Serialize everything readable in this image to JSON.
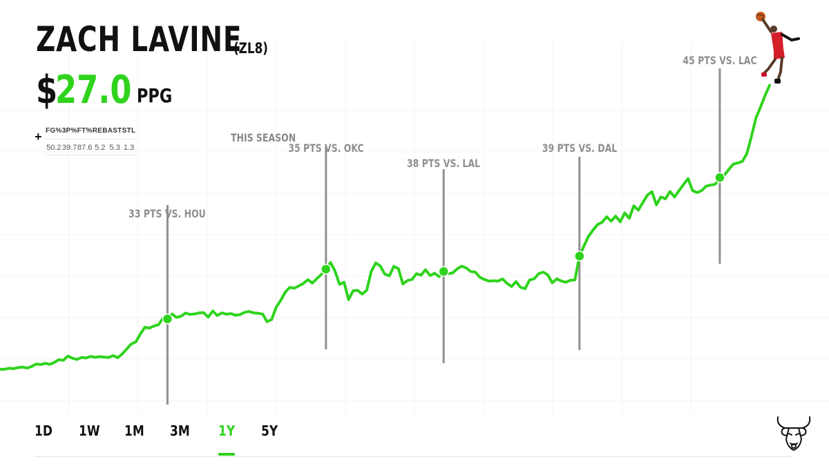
{
  "header": {
    "player_name": "ZACH LAVINE",
    "ticker": "(ZL8)",
    "currency_symbol": "$",
    "price": "27.0",
    "price_unit": "PPG"
  },
  "stats": {
    "expand_symbol": "+",
    "columns": [
      "FG%",
      "3P%",
      "FT%",
      "REB",
      "AST",
      "STL"
    ],
    "values": [
      "50.2",
      "39.7",
      "87.6",
      "5.2",
      "5.3",
      "1.3"
    ],
    "period_label": "THIS SEASON"
  },
  "annotations": [
    {
      "label": "33 PTS VS. HOU"
    },
    {
      "label": "35 PTS VS. OKC"
    },
    {
      "label": "38 PTS VS. LAL"
    },
    {
      "label": "39 PTS VS. DAL"
    },
    {
      "label": "45 PTS VS. LAC"
    }
  ],
  "time_ranges": {
    "items": [
      "1D",
      "1W",
      "1M",
      "3M",
      "1Y",
      "5Y"
    ],
    "active": "1Y"
  },
  "colors": {
    "accent": "#2fd31d",
    "annotation_text": "#8f8f8f",
    "text": "#111111"
  },
  "icons": {
    "team_logo": "bulls-logo-icon",
    "player_photo": "dunking-player-image"
  },
  "chart_data": {
    "type": "line",
    "series": [
      {
        "values": [
          10,
          10,
          10.5,
          10.3,
          10.8,
          11,
          10.6,
          11.3,
          12.5,
          12.2,
          12.8,
          12.3,
          13.2,
          14.5,
          14.2,
          16.2,
          15.2,
          14.6,
          15.5,
          15.3,
          16,
          15.6,
          15.9,
          15.7,
          15.5,
          16.4,
          15.4,
          17.2,
          19.5,
          21.8,
          22.8,
          26.4,
          29.6,
          29.2,
          30.2,
          30.8,
          33.8,
          33.5,
          35.8,
          34.2,
          34.8,
          36.2,
          35.6,
          35.8,
          36.3,
          36.4,
          34.3,
          37.2,
          35.1,
          36.3,
          35.7,
          36,
          35.2,
          35.5,
          36.5,
          37,
          36.3,
          36.1,
          35.8,
          32.2,
          33.2,
          38.9,
          42.1,
          45.9,
          48.2,
          47.8,
          48.9,
          50,
          51.8,
          50.2,
          52.3,
          54.3,
          56.7,
          59.8,
          55.8,
          49.6,
          50.6,
          42.5,
          46.6,
          46.8,
          45.1,
          46.8,
          55.5,
          59.6,
          58.2,
          54.4,
          53.6,
          58,
          56.9,
          49.8,
          51.4,
          51.9,
          54.6,
          53.9,
          56.4,
          53.7,
          54.8,
          53.2,
          55.6,
          54.6,
          54.9,
          56.8,
          58.1,
          57.2,
          55.6,
          55.3,
          52.9,
          51.9,
          51.1,
          51.3,
          51.1,
          52.1,
          50.1,
          48.6,
          50.9,
          48.2,
          47.6,
          51.7,
          52.2,
          54.6,
          55.3,
          54,
          50.3,
          52.2,
          51.1,
          50.6,
          51.5,
          51.7,
          62.8,
          67.5,
          72,
          74.9,
          77.5,
          78.5,
          81.1,
          79.1,
          81.4,
          78.8,
          82.9,
          80.4,
          86.2,
          84.2,
          87.7,
          91.2,
          92.8,
          86.7,
          90.4,
          89.5,
          92.9,
          90.4,
          93.3,
          96.2,
          98.9,
          93.3,
          92.4,
          93.3,
          95.4,
          95.9,
          96.3,
          99.4,
          100.5,
          103.2,
          105.7,
          106.2,
          107,
          110.6,
          118.7,
          127.2,
          132.3,
          137.6,
          142.4
        ]
      }
    ],
    "markers": [
      {
        "label": "33 PTS VS. HOU",
        "value": 33.5
      },
      {
        "label": "35 PTS VS. OKC",
        "value": 56.7
      },
      {
        "label": "38 PTS VS. LAL",
        "value": 55.6
      },
      {
        "label": "39 PTS VS. DAL",
        "value": 62.8
      },
      {
        "label": "45 PTS VS. LAC",
        "value": 99.4
      }
    ],
    "ylim": [
      0,
      150
    ],
    "grid": true,
    "legend": "none"
  }
}
